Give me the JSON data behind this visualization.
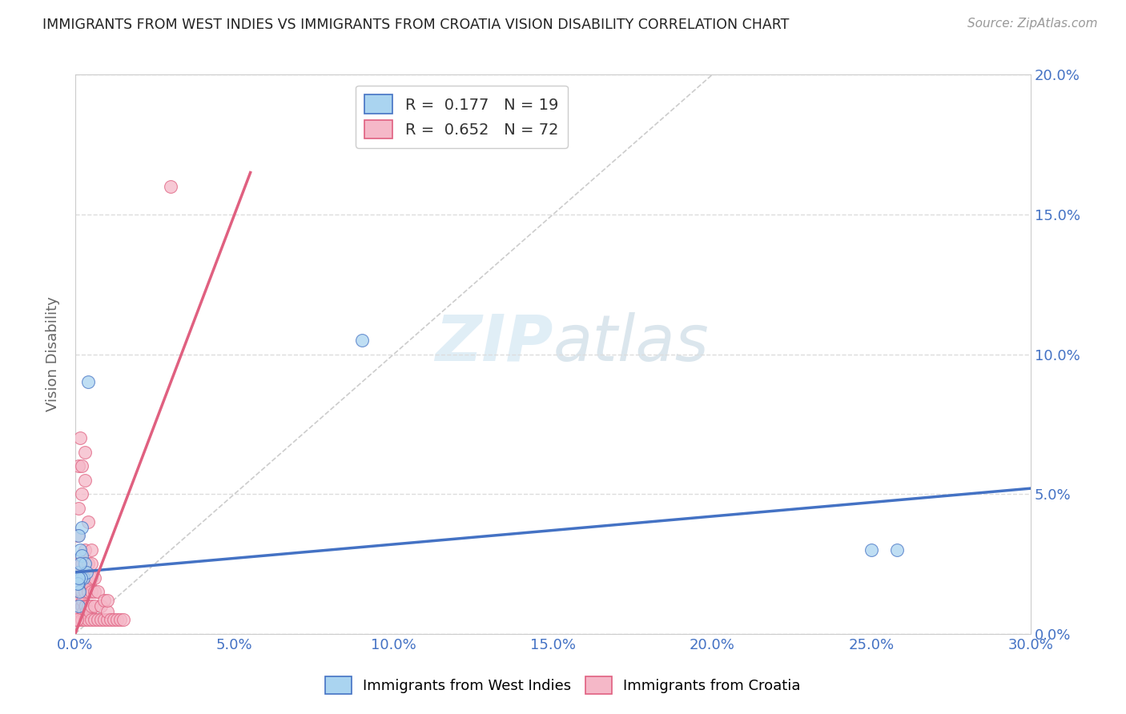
{
  "title": "IMMIGRANTS FROM WEST INDIES VS IMMIGRANTS FROM CROATIA VISION DISABILITY CORRELATION CHART",
  "source": "Source: ZipAtlas.com",
  "ylabel": "Vision Disability",
  "legend_label_blue": "Immigrants from West Indies",
  "legend_label_pink": "Immigrants from Croatia",
  "R_blue": 0.177,
  "N_blue": 19,
  "R_pink": 0.652,
  "N_pink": 72,
  "xlim": [
    0.0,
    0.3
  ],
  "ylim": [
    0.0,
    0.2
  ],
  "xticks": [
    0.0,
    0.05,
    0.1,
    0.15,
    0.2,
    0.25,
    0.3
  ],
  "yticks": [
    0.0,
    0.05,
    0.1,
    0.15,
    0.2
  ],
  "xtick_labels": [
    "0.0%",
    "5.0%",
    "10.0%",
    "15.0%",
    "20.0%",
    "25.0%",
    "30.0%"
  ],
  "ytick_labels": [
    "0.0%",
    "5.0%",
    "10.0%",
    "15.0%",
    "20.0%"
  ],
  "color_blue_fill": "#aad4f0",
  "color_pink_fill": "#f5b8c8",
  "color_blue_line": "#4472c4",
  "color_pink_line": "#e06080",
  "color_axis_labels": "#4472c4",
  "background_color": "#ffffff",
  "blue_line_x": [
    0.0,
    0.3
  ],
  "blue_line_y": [
    0.022,
    0.052
  ],
  "pink_line_x": [
    0.0,
    0.055
  ],
  "pink_line_y": [
    0.0,
    0.165
  ],
  "diag_line_x": [
    0.0,
    0.2
  ],
  "diag_line_y": [
    0.0,
    0.2
  ],
  "west_indies_x": [
    0.001,
    0.0015,
    0.002,
    0.002,
    0.003,
    0.001,
    0.0025,
    0.0035,
    0.001,
    0.0012,
    0.0018,
    0.0008,
    0.001,
    0.0015,
    0.001,
    0.25,
    0.258,
    0.09,
    0.004
  ],
  "west_indies_y": [
    0.022,
    0.03,
    0.028,
    0.038,
    0.025,
    0.018,
    0.02,
    0.022,
    0.035,
    0.015,
    0.02,
    0.018,
    0.01,
    0.025,
    0.02,
    0.03,
    0.03,
    0.105,
    0.09
  ],
  "croatia_x": [
    0.0005,
    0.0005,
    0.0008,
    0.001,
    0.001,
    0.001,
    0.001,
    0.001,
    0.0012,
    0.0012,
    0.0015,
    0.0015,
    0.0015,
    0.0018,
    0.002,
    0.002,
    0.002,
    0.002,
    0.002,
    0.0022,
    0.0025,
    0.0025,
    0.003,
    0.003,
    0.003,
    0.003,
    0.003,
    0.003,
    0.0032,
    0.0035,
    0.0035,
    0.004,
    0.004,
    0.004,
    0.004,
    0.0045,
    0.0045,
    0.005,
    0.005,
    0.005,
    0.005,
    0.005,
    0.006,
    0.006,
    0.006,
    0.006,
    0.007,
    0.007,
    0.008,
    0.008,
    0.009,
    0.009,
    0.01,
    0.01,
    0.01,
    0.011,
    0.012,
    0.013,
    0.014,
    0.015,
    0.0005,
    0.0008,
    0.001,
    0.001,
    0.0015,
    0.002,
    0.002,
    0.003,
    0.003,
    0.004,
    0.005,
    0.03
  ],
  "croatia_y": [
    0.005,
    0.01,
    0.008,
    0.005,
    0.01,
    0.015,
    0.02,
    0.025,
    0.01,
    0.018,
    0.008,
    0.012,
    0.02,
    0.015,
    0.005,
    0.01,
    0.015,
    0.02,
    0.025,
    0.012,
    0.008,
    0.018,
    0.005,
    0.01,
    0.015,
    0.02,
    0.025,
    0.03,
    0.01,
    0.008,
    0.018,
    0.005,
    0.01,
    0.015,
    0.025,
    0.008,
    0.018,
    0.005,
    0.01,
    0.015,
    0.02,
    0.025,
    0.005,
    0.01,
    0.015,
    0.02,
    0.005,
    0.015,
    0.005,
    0.01,
    0.005,
    0.012,
    0.005,
    0.008,
    0.012,
    0.005,
    0.005,
    0.005,
    0.005,
    0.005,
    0.005,
    0.035,
    0.045,
    0.06,
    0.07,
    0.06,
    0.05,
    0.055,
    0.065,
    0.04,
    0.03,
    0.16
  ]
}
